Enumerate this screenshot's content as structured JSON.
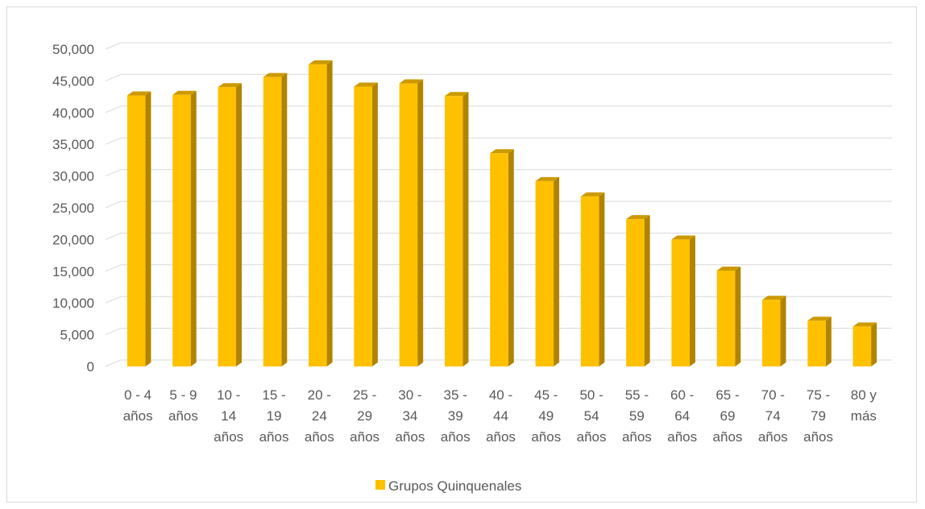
{
  "chart_data": {
    "type": "bar",
    "style": "3d-column",
    "categories": [
      [
        "0 - 4",
        "años"
      ],
      [
        "5 - 9",
        "años"
      ],
      [
        "10 -",
        "14",
        "años"
      ],
      [
        "15 -",
        "19",
        "años"
      ],
      [
        "20 -",
        "24",
        "años"
      ],
      [
        "25 -",
        "29",
        "años"
      ],
      [
        "30 -",
        "34",
        "años"
      ],
      [
        "35 -",
        "39",
        "años"
      ],
      [
        "40 -",
        "44",
        "años"
      ],
      [
        "45 -",
        "49",
        "años"
      ],
      [
        "50 -",
        "54",
        "años"
      ],
      [
        "55 -",
        "59",
        "años"
      ],
      [
        "60 -",
        "64",
        "años"
      ],
      [
        "65 -",
        "69",
        "años"
      ],
      [
        "70 -",
        "74",
        "años"
      ],
      [
        "75 -",
        "79",
        "años"
      ],
      [
        "80 y",
        "más"
      ]
    ],
    "series": [
      {
        "name": "Grupos Quinquenales",
        "values": [
          42700,
          42800,
          44000,
          45600,
          47600,
          44100,
          44600,
          42600,
          33600,
          29200,
          26800,
          23200,
          20000,
          15100,
          10500,
          7200,
          6300
        ]
      }
    ],
    "ylim": [
      0,
      50000
    ],
    "yticks": [
      "0",
      "5,000",
      "10,000",
      "15,000",
      "20,000",
      "25,000",
      "30,000",
      "35,000",
      "40,000",
      "45,000",
      "50,000"
    ],
    "ytick_values": [
      0,
      5000,
      10000,
      15000,
      20000,
      25000,
      30000,
      35000,
      40000,
      45000,
      50000
    ],
    "grid": true,
    "legend_position": "bottom",
    "colors": {
      "bar_front": "#FFC000",
      "bar_side": "#B08400",
      "bar_top": "#CC9A00",
      "grid": "#d9d9d9",
      "text": "#595959"
    }
  }
}
